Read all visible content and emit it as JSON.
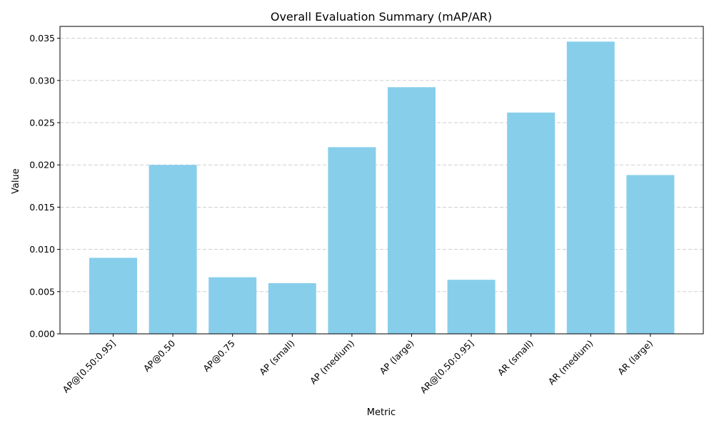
{
  "chart_data": {
    "type": "bar",
    "title": "Overall Evaluation Summary (mAP/AR)",
    "xlabel": "Metric",
    "ylabel": "Value",
    "categories": [
      "AP@[0.50:0.95]",
      "AP@0.50",
      "AP@0.75",
      "AP (small)",
      "AP (medium)",
      "AP (large)",
      "AR@[0.50:0.95]",
      "AR (small)",
      "AR (medium)",
      "AR (large)"
    ],
    "values": [
      0.009,
      0.02,
      0.0067,
      0.006,
      0.0221,
      0.0292,
      0.0064,
      0.0262,
      0.0346,
      0.0188
    ],
    "ylim": [
      0,
      0.0364
    ],
    "yticks": [
      "0.000",
      "0.005",
      "0.010",
      "0.015",
      "0.020",
      "0.025",
      "0.030",
      "0.035"
    ],
    "grid": "y-dashed",
    "bar_color": "#87CEEB"
  }
}
